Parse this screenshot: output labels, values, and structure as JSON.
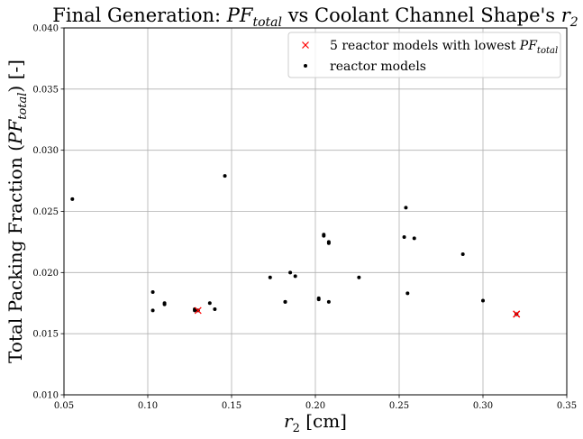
{
  "chart_data": {
    "type": "scatter",
    "title": {
      "prefix": "Final Generation: ",
      "var1": "PF",
      "var1_sub": "total",
      "middle": " vs Coolant Channel Shape's ",
      "var2": "r",
      "var2_sub": "2"
    },
    "xlabel": {
      "var": "r",
      "sub": "2",
      "suffix": " [cm]"
    },
    "ylabel": {
      "prefix": "Total Packing Fraction (",
      "var": "PF",
      "sub": "total",
      "suffix": ") [-]"
    },
    "xlim": [
      0.05,
      0.35
    ],
    "ylim": [
      0.01,
      0.04
    ],
    "xticks": [
      "0.05",
      "0.10",
      "0.15",
      "0.20",
      "0.25",
      "0.30",
      "0.35"
    ],
    "yticks": [
      "0.010",
      "0.015",
      "0.020",
      "0.025",
      "0.030",
      "0.035",
      "0.040"
    ],
    "grid": true,
    "legend_position": "top-right",
    "series": [
      {
        "name": "reactor models",
        "marker": "dot",
        "color": "#000000",
        "points": [
          [
            0.055,
            0.026
          ],
          [
            0.103,
            0.0184
          ],
          [
            0.103,
            0.0169
          ],
          [
            0.11,
            0.0175
          ],
          [
            0.11,
            0.0174
          ],
          [
            0.128,
            0.017
          ],
          [
            0.128,
            0.0169
          ],
          [
            0.137,
            0.0175
          ],
          [
            0.14,
            0.017
          ],
          [
            0.146,
            0.0279
          ],
          [
            0.173,
            0.0196
          ],
          [
            0.182,
            0.0176
          ],
          [
            0.182,
            0.0176
          ],
          [
            0.185,
            0.02
          ],
          [
            0.188,
            0.0197
          ],
          [
            0.202,
            0.0179
          ],
          [
            0.202,
            0.0178
          ],
          [
            0.205,
            0.0231
          ],
          [
            0.205,
            0.023
          ],
          [
            0.208,
            0.0225
          ],
          [
            0.208,
            0.0224
          ],
          [
            0.208,
            0.0176
          ],
          [
            0.226,
            0.0196
          ],
          [
            0.253,
            0.0229
          ],
          [
            0.254,
            0.0253
          ],
          [
            0.255,
            0.0183
          ],
          [
            0.259,
            0.0228
          ],
          [
            0.288,
            0.0215
          ],
          [
            0.3,
            0.0177
          ],
          [
            0.32,
            0.0166
          ],
          [
            0.32,
            0.0166
          ],
          [
            0.13,
            0.0169
          ]
        ]
      },
      {
        "name": "5 reactor models with lowest ",
        "name_var": "PF",
        "name_sub": "total",
        "marker": "x",
        "color": "#ff0000",
        "points": [
          [
            0.13,
            0.0169
          ],
          [
            0.32,
            0.0166
          ],
          [
            0.32,
            0.0166
          ],
          [
            0.32,
            0.0166
          ],
          [
            0.32,
            0.0166
          ]
        ]
      }
    ]
  }
}
